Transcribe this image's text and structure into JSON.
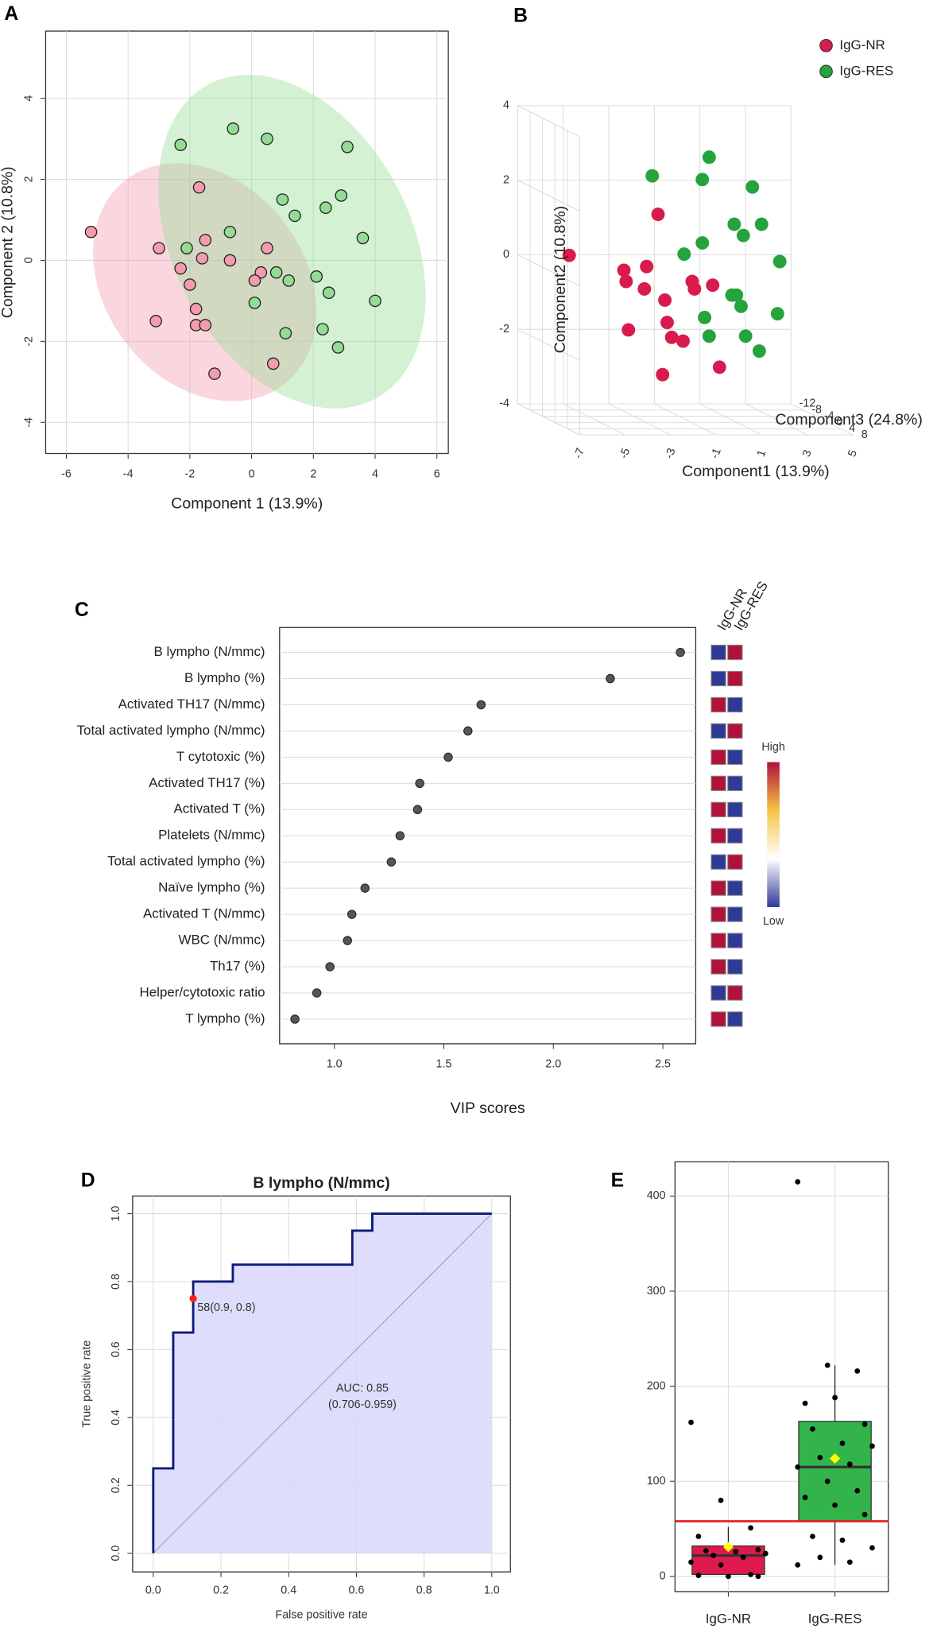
{
  "chart_data": [
    {
      "panel": "A",
      "type": "scatter",
      "xlabel": "Component 1 (13.9%)",
      "ylabel": "Component 2 (10.8%)",
      "xlim": [
        -6.67,
        6.37
      ],
      "ylim": [
        -4.77,
        5.66
      ],
      "xticks": [
        -6,
        -4,
        -2,
        0,
        2,
        4,
        6
      ],
      "yticks": [
        -4,
        -2,
        0,
        2,
        4
      ],
      "grid": true,
      "ellipses": true,
      "series": [
        {
          "color": "#f29cae",
          "x": [
            -5.2,
            -3,
            -2.3,
            -1.7,
            -1.5,
            -2,
            -1.8,
            -3.1,
            -1.8,
            -1.5,
            -1.2,
            -1.6,
            -0.7,
            0.5,
            0.3,
            0.1,
            0.7
          ],
          "values": [
            0.7,
            0.3,
            -0.2,
            1.8,
            0.5,
            -0.6,
            -1.2,
            -1.5,
            -1.6,
            -1.6,
            -2.8,
            0.05,
            0,
            0.3,
            -0.3,
            -0.5,
            -2.55
          ]
        },
        {
          "color": "#94dc94",
          "x": [
            -2.3,
            -0.6,
            0.5,
            3.1,
            1,
            1.4,
            2.4,
            2.9,
            3.6,
            -2.1,
            -0.7,
            0.8,
            1.2,
            2.1,
            2.5,
            4,
            0.1,
            1.1,
            2.3,
            2.8
          ],
          "values": [
            2.85,
            3.25,
            3,
            2.8,
            1.5,
            1.1,
            1.3,
            1.6,
            0.55,
            0.3,
            0.7,
            -0.3,
            -0.5,
            -0.4,
            -0.8,
            -1,
            -1.05,
            -1.8,
            -1.7,
            -2.15
          ]
        }
      ]
    },
    {
      "panel": "B",
      "type": "scatter3d",
      "xlabel": "Component1 (13.9%)",
      "ylabel": "Component2 (10.8%)",
      "zlabel": "Component3 (24.8%)",
      "xlim": [
        -7,
        5
      ],
      "ylim": [
        -4,
        4
      ],
      "zlim": [
        -12,
        8
      ],
      "xticks": [
        -7,
        -5,
        -3,
        -1,
        1,
        3,
        5
      ],
      "yticks": [
        -4,
        -2,
        0,
        2,
        4
      ],
      "zticks": [
        -12,
        -8,
        -4,
        0,
        4,
        8
      ],
      "legend": "top-right",
      "series": [
        {
          "name": "IgG-NR",
          "color": "#d81b4c",
          "x": [
            -6.1,
            -2.2,
            -3.7,
            -3.6,
            -2.7,
            -2.8,
            -1.9,
            -0.7,
            -0.6,
            0.2,
            -1.8,
            -1.1,
            -1.6,
            -3.5,
            0.5,
            -2.0
          ],
          "values": [
            0.4,
            1.5,
            0.0,
            -0.3,
            0.1,
            -0.5,
            -0.8,
            -0.3,
            -0.5,
            -0.4,
            -1.4,
            -1.9,
            -1.8,
            -1.6,
            -2.6,
            -2.8
          ],
          "z": [
            -2,
            -2,
            -2,
            -2,
            -2,
            -2,
            -2,
            -2,
            -2,
            -2,
            -2,
            -2,
            -2,
            -2,
            -2,
            -2
          ]
        },
        {
          "name": "IgG-RES",
          "color": "#25a33c",
          "x": [
            -0.5,
            -3.0,
            -0.8,
            1.4,
            0.6,
            1.8,
            1.0,
            -1.6,
            -0.8,
            2.6,
            0.5,
            0.7,
            0.9,
            -0.7,
            -0.5,
            2.5,
            1.1,
            1.7
          ],
          "values": [
            3.2,
            2.7,
            2.6,
            2.4,
            1.4,
            1.4,
            1.1,
            0.6,
            0.9,
            0.4,
            -0.5,
            -0.5,
            -0.8,
            -1.1,
            -1.6,
            -1.0,
            -1.6,
            -2.0
          ],
          "z": [
            2,
            2,
            2,
            2,
            2,
            2,
            2,
            2,
            2,
            2,
            2,
            2,
            2,
            2,
            2,
            2,
            2,
            2
          ]
        }
      ]
    },
    {
      "panel": "C",
      "type": "lollipop",
      "xlabel": "VIP scores",
      "categories": [
        "B lympho (N/mmc)",
        "B lympho (%)",
        "Activated TH17 (N/mmc)",
        "Total activated lympho (N/mmc)",
        "T cytotoxic (%)",
        "Activated TH17 (%)",
        "Activated T (%)",
        "Platelets (N/mmc)",
        "Total activated lympho (%)",
        "Naïve lympho (%)",
        "Activated T (N/mmc)",
        "WBC (N/mmc)",
        "Th17 (%)",
        "Helper/cytotoxic ratio",
        "T lympho (%)"
      ],
      "values": [
        2.58,
        2.26,
        1.67,
        1.61,
        1.52,
        1.39,
        1.38,
        1.3,
        1.26,
        1.14,
        1.08,
        1.06,
        0.98,
        0.92,
        0.82
      ],
      "xlim": [
        0.75,
        2.65
      ],
      "xticks": [
        {
          "value": 1,
          "label": "1.0"
        },
        1.5,
        {
          "value": 2,
          "label": "2.0"
        },
        2.5
      ],
      "point_color": "#555555",
      "heatmap": {
        "columns": [
          "IgG-NR",
          "IgG-RES"
        ],
        "colors": [
          [
            "#2e3a96",
            "#b0123a"
          ],
          [
            "#2e3a96",
            "#b0123a"
          ],
          [
            "#b0123a",
            "#2e3a96"
          ],
          [
            "#2e3a96",
            "#b0123a"
          ],
          [
            "#b0123a",
            "#2e3a96"
          ],
          [
            "#b0123a",
            "#2e3a96"
          ],
          [
            "#b0123a",
            "#2e3a96"
          ],
          [
            "#b0123a",
            "#2e3a96"
          ],
          [
            "#2e3a96",
            "#b0123a"
          ],
          [
            "#b0123a",
            "#2e3a96"
          ],
          [
            "#b0123a",
            "#2e3a96"
          ],
          [
            "#b0123a",
            "#2e3a96"
          ],
          [
            "#b0123a",
            "#2e3a96"
          ],
          [
            "#2e3a96",
            "#b0123a"
          ],
          [
            "#b0123a",
            "#2e3a96"
          ]
        ],
        "legend_high": "High",
        "legend_low": "Low",
        "scale_colors": [
          "#b0123a",
          "#f6c445",
          "#ffffff",
          "#2e3a96"
        ]
      }
    },
    {
      "panel": "D",
      "type": "roc",
      "title": "B lympho (N/mmc)",
      "xlabel": "False positive rate",
      "ylabel": "True positive rate",
      "x": [
        0,
        0,
        0.059,
        0.059,
        0.118,
        0.118,
        0.235,
        0.235,
        0.588,
        0.588,
        0.647,
        0.647,
        1
      ],
      "values": [
        0,
        0.25,
        0.25,
        0.65,
        0.65,
        0.8,
        0.8,
        0.85,
        0.85,
        0.95,
        0.95,
        1,
        1
      ],
      "xlim": [
        -0.061,
        1.055
      ],
      "ylim": [
        -0.055,
        1.052
      ],
      "xticks": [
        {
          "value": 0,
          "label": "0.0"
        },
        0.2,
        0.4,
        0.6,
        0.8,
        {
          "value": 1,
          "label": "1.0"
        }
      ],
      "yticks": [
        {
          "value": 0,
          "label": "0.0"
        },
        0.2,
        0.4,
        0.6,
        0.8,
        {
          "value": 1,
          "label": "1.0"
        }
      ],
      "grid": true,
      "color": "#0d1a7a",
      "area_color": "#d8d8fb",
      "cutoff": {
        "x": 0.118,
        "y": 0.75,
        "label": "58(0.9, 0.8)",
        "color": "#ff1a1a"
      },
      "auc_label": "AUC: 0.85",
      "auc_ci": "(0.706-0.959)"
    },
    {
      "panel": "E",
      "type": "box",
      "categories": [
        "IgG-NR",
        "IgG-RES"
      ],
      "ylim": [
        -16,
        436
      ],
      "yticks": [
        0,
        100,
        200,
        300,
        400
      ],
      "grid": true,
      "colors": [
        "#e0194d",
        "#33b44a"
      ],
      "boxes": [
        {
          "q1": 2,
          "median": 22,
          "q3": 32,
          "whisker_low": 0,
          "whisker_high": 52,
          "mean": 31
        },
        {
          "q1": 58,
          "median": 115,
          "q3": 163,
          "whisker_low": 12,
          "whisker_high": 222,
          "mean": 124
        }
      ],
      "points": [
        [
          162,
          80,
          51,
          42,
          30,
          28,
          27,
          26,
          24,
          22,
          20,
          15,
          12,
          2,
          1,
          0,
          0
        ],
        [
          415,
          222,
          216,
          182,
          188,
          160,
          155,
          140,
          137,
          125,
          118,
          115,
          100,
          90,
          83,
          75,
          65,
          42,
          38,
          30,
          20,
          15,
          12
        ]
      ],
      "threshold": 58,
      "threshold_color": "#e31a1c",
      "mean_color": "#ffff00"
    }
  ]
}
